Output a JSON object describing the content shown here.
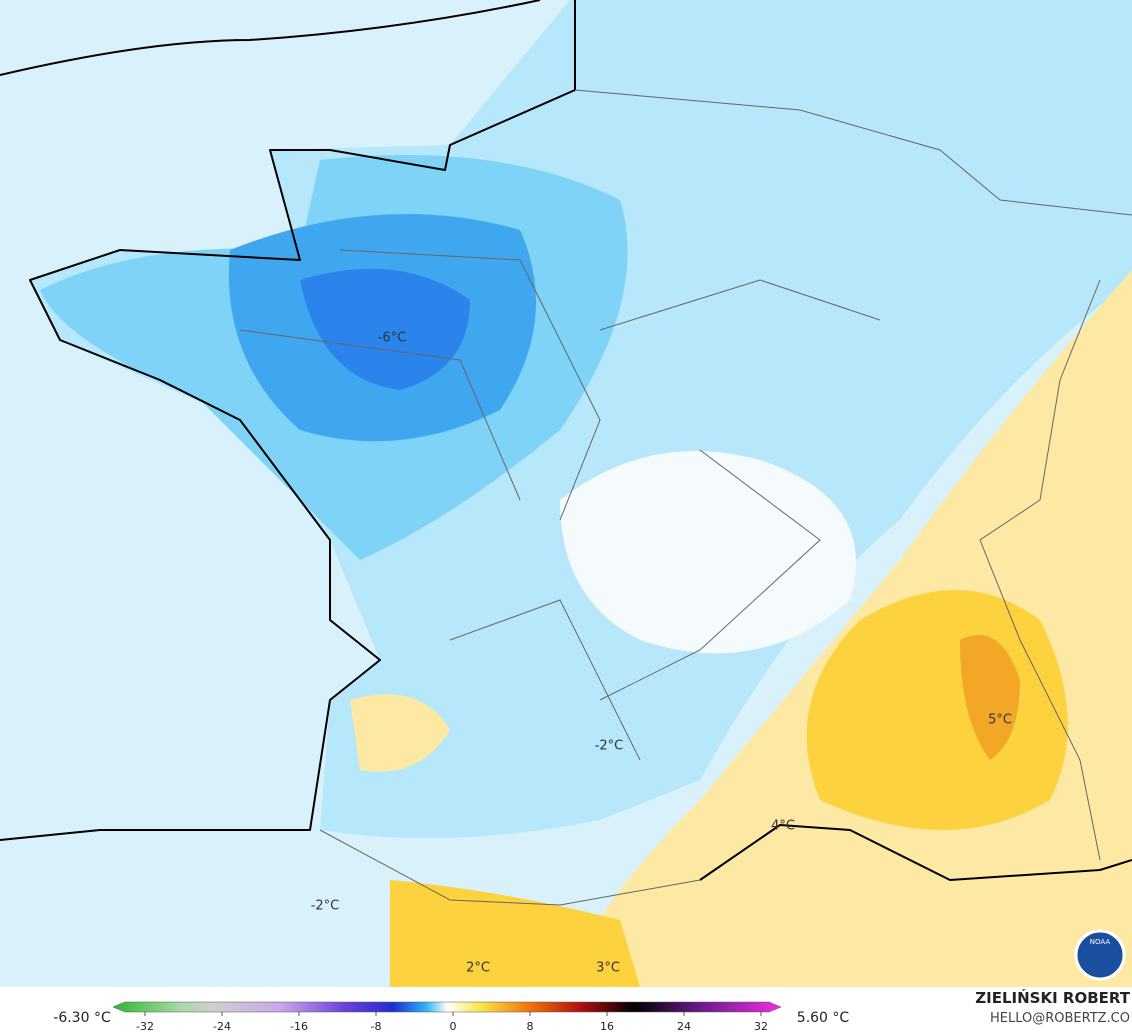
{
  "map": {
    "labels": [
      "-6°C",
      "-2°C",
      "-2°C",
      "5°C",
      "4°C",
      "2°C",
      "3°C"
    ]
  },
  "colorbar": {
    "min_label": "-6.30 °C",
    "max_label": "5.60 °C",
    "ticks": [
      -32,
      -24,
      -16,
      -8,
      0,
      8,
      16,
      24,
      32
    ]
  },
  "credit": {
    "name": "ZIELIŃSKI ROBERT",
    "contact": "HELLO@ROBERTZ.CO"
  },
  "logo": "NOAA"
}
